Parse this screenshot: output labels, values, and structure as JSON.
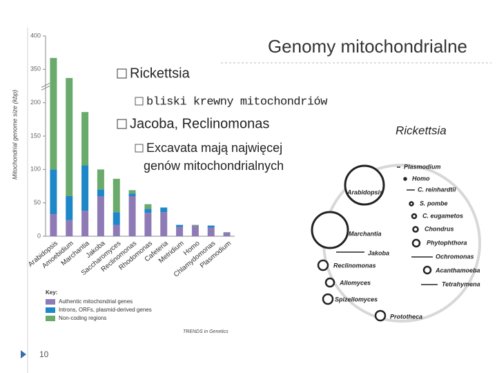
{
  "header": {
    "title": "Genomy mitochondrialne"
  },
  "bullets": [
    {
      "text": "Rickettsia",
      "sub": [
        {
          "lines": [
            "bliski krewny mitochondriów"
          ]
        }
      ]
    },
    {
      "text": "Jacoba, Reclinomonas",
      "sub": [
        {
          "lines": [
            "Excavata mają najwięcej",
            "genów mitochondrialnych"
          ]
        }
      ]
    }
  ],
  "footer": {
    "page": "10"
  },
  "chart_data": {
    "type": "stacked-bar",
    "y_label": "Mitochondrial genome size (kbp)",
    "categories": [
      "Arabidopsis",
      "Amoebidium",
      "Marchantia",
      "Jakoba",
      "Saccharomyces",
      "Reclinomonas",
      "Rhodomonas",
      "Cafeteria",
      "Metridium",
      "Homo",
      "Chlamydomonas",
      "Plasmodium"
    ],
    "series": [
      {
        "name": "Authentic mitochondrial genes",
        "color": "#8e7bb6",
        "values": [
          33,
          24,
          38,
          60,
          17,
          60,
          35,
          36,
          14,
          16,
          13,
          6
        ]
      },
      {
        "name": "Introns, ORFs, plasmid-derived genes",
        "color": "#1e87c8",
        "values": [
          67,
          36,
          68,
          10,
          19,
          4,
          6,
          7,
          3,
          0,
          3,
          0
        ]
      },
      {
        "name": "Non-coding regions",
        "color": "#6aaa6c",
        "values": [
          267,
          277,
          80,
          30,
          50,
          5,
          7,
          0,
          0,
          1,
          0,
          0
        ]
      }
    ],
    "ylim": [
      0,
      400
    ],
    "yticks": [
      0,
      50,
      100,
      150,
      200,
      350,
      400
    ],
    "axis_break": [
      200,
      300
    ],
    "legend_title": "Key:",
    "source": "TRENDS in Genetics"
  },
  "diagram": {
    "title": "Rickettsia",
    "nodes": [
      {
        "label": "Arabidopsis"
      },
      {
        "label": "Marchantia"
      },
      {
        "label": "Jakoba"
      },
      {
        "label": "Reclinomonas"
      },
      {
        "label": "Allomyces"
      },
      {
        "label": "Spizellomyces"
      },
      {
        "label": "Prototheca"
      },
      {
        "label": "Plasmodium"
      },
      {
        "label": "Homo"
      },
      {
        "label": "C. reinhardtii"
      },
      {
        "label": "S. pombe"
      },
      {
        "label": "C. eugametos"
      },
      {
        "label": "Chondrus"
      },
      {
        "label": "Phytophthora"
      },
      {
        "label": "Ochromonas"
      },
      {
        "label": "Acanthamoeba"
      },
      {
        "label": "Tetrahymena"
      }
    ]
  }
}
